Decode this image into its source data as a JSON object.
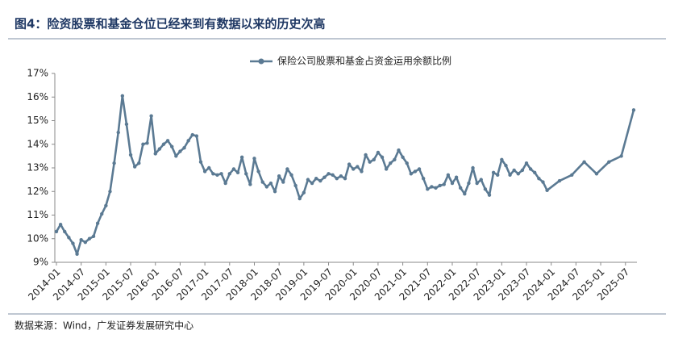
{
  "chart_data": {
    "type": "line",
    "title": "图4：险资股票和基金仓位已经来到有数据以来的历史次高",
    "source": "数据来源：Wind，广发证券发展研究中心",
    "x": [
      "2014-01",
      "2014-02",
      "2014-03",
      "2014-04",
      "2014-05",
      "2014-06",
      "2014-07",
      "2014-08",
      "2014-09",
      "2014-10",
      "2014-11",
      "2014-12",
      "2015-01",
      "2015-02",
      "2015-03",
      "2015-04",
      "2015-05",
      "2015-06",
      "2015-07",
      "2015-08",
      "2015-09",
      "2015-10",
      "2015-11",
      "2015-12",
      "2016-01",
      "2016-02",
      "2016-03",
      "2016-04",
      "2016-05",
      "2016-06",
      "2016-07",
      "2016-08",
      "2016-09",
      "2016-10",
      "2016-11",
      "2016-12",
      "2017-01",
      "2017-02",
      "2017-03",
      "2017-04",
      "2017-05",
      "2017-06",
      "2017-07",
      "2017-08",
      "2017-09",
      "2017-10",
      "2017-11",
      "2017-12",
      "2018-01",
      "2018-02",
      "2018-03",
      "2018-04",
      "2018-05",
      "2018-06",
      "2018-07",
      "2018-08",
      "2018-09",
      "2018-10",
      "2018-11",
      "2018-12",
      "2019-01",
      "2019-02",
      "2019-03",
      "2019-04",
      "2019-05",
      "2019-06",
      "2019-07",
      "2019-08",
      "2019-09",
      "2019-10",
      "2019-11",
      "2019-12",
      "2020-01",
      "2020-02",
      "2020-03",
      "2020-04",
      "2020-05",
      "2020-06",
      "2020-07",
      "2020-08",
      "2020-09",
      "2020-10",
      "2020-11",
      "2020-12",
      "2021-01",
      "2021-02",
      "2021-03",
      "2021-04",
      "2021-05",
      "2021-06",
      "2021-07",
      "2021-08",
      "2021-09",
      "2021-10",
      "2021-11",
      "2021-12",
      "2022-01",
      "2022-02",
      "2022-03",
      "2022-04",
      "2022-05",
      "2022-06",
      "2022-07",
      "2022-08",
      "2022-09",
      "2022-10",
      "2022-11",
      "2022-12",
      "2023-01",
      "2023-02",
      "2023-03",
      "2023-04",
      "2023-05",
      "2023-06",
      "2023-07",
      "2023-08",
      "2023-09",
      "2023-10",
      "2023-11",
      "2023-12",
      "2024-03",
      "2024-06",
      "2024-09",
      "2024-12",
      "2025-03",
      "2025-06",
      "2025-09"
    ],
    "series": [
      {
        "name": "保险公司股票和基金占资金运用余额比例",
        "color": "#5b7a93",
        "values": [
          10.3,
          10.6,
          10.3,
          10.05,
          9.8,
          9.35,
          9.95,
          9.85,
          10.0,
          10.1,
          10.65,
          11.05,
          11.4,
          12.0,
          13.2,
          14.5,
          16.05,
          14.85,
          13.55,
          13.05,
          13.2,
          14.0,
          14.05,
          15.2,
          13.6,
          13.8,
          14.0,
          14.15,
          13.9,
          13.5,
          13.7,
          13.85,
          14.15,
          14.4,
          14.35,
          13.25,
          12.85,
          13.0,
          12.75,
          12.7,
          12.75,
          12.35,
          12.75,
          12.95,
          12.8,
          13.45,
          12.75,
          12.3,
          13.4,
          12.85,
          12.4,
          12.2,
          12.35,
          12.0,
          12.65,
          12.4,
          12.95,
          12.7,
          12.25,
          11.7,
          11.95,
          12.5,
          12.35,
          12.55,
          12.45,
          12.6,
          12.75,
          12.7,
          12.55,
          12.65,
          12.55,
          13.15,
          12.95,
          13.05,
          12.85,
          13.55,
          13.25,
          13.35,
          13.65,
          13.45,
          12.95,
          13.2,
          13.35,
          13.75,
          13.45,
          13.2,
          12.75,
          12.85,
          12.95,
          12.55,
          12.1,
          12.2,
          12.15,
          12.25,
          12.3,
          12.7,
          12.35,
          12.6,
          12.15,
          11.9,
          12.35,
          13.0,
          12.35,
          12.5,
          12.1,
          11.85,
          12.8,
          12.7,
          13.35,
          13.1,
          12.7,
          12.9,
          12.75,
          12.9,
          13.2,
          12.95,
          12.8,
          12.55,
          12.4,
          12.05,
          12.45,
          12.7,
          13.25,
          12.75,
          13.25,
          13.5,
          15.45
        ]
      }
    ],
    "xlim": [
      "2014-01",
      "2025-09"
    ],
    "xticks": [
      "2014-01",
      "2014-07",
      "2015-01",
      "2015-07",
      "2016-01",
      "2016-07",
      "2017-01",
      "2017-07",
      "2018-01",
      "2018-07",
      "2019-01",
      "2019-07",
      "2020-01",
      "2020-07",
      "2021-01",
      "2021-07",
      "2022-01",
      "2022-07",
      "2023-01",
      "2023-07",
      "2024-01",
      "2024-07",
      "2025-01",
      "2025-07"
    ],
    "ylim": [
      9,
      17
    ],
    "yticks": [
      {
        "value": 9,
        "label": "9%"
      },
      {
        "value": 10,
        "label": "10%"
      },
      {
        "value": 11,
        "label": "11%"
      },
      {
        "value": 12,
        "label": "12%"
      },
      {
        "value": 13,
        "label": "13%"
      },
      {
        "value": 14,
        "label": "14%"
      },
      {
        "value": 15,
        "label": "15%"
      },
      {
        "value": 16,
        "label": "16%"
      },
      {
        "value": 17,
        "label": "17%"
      }
    ],
    "legend": "top"
  }
}
